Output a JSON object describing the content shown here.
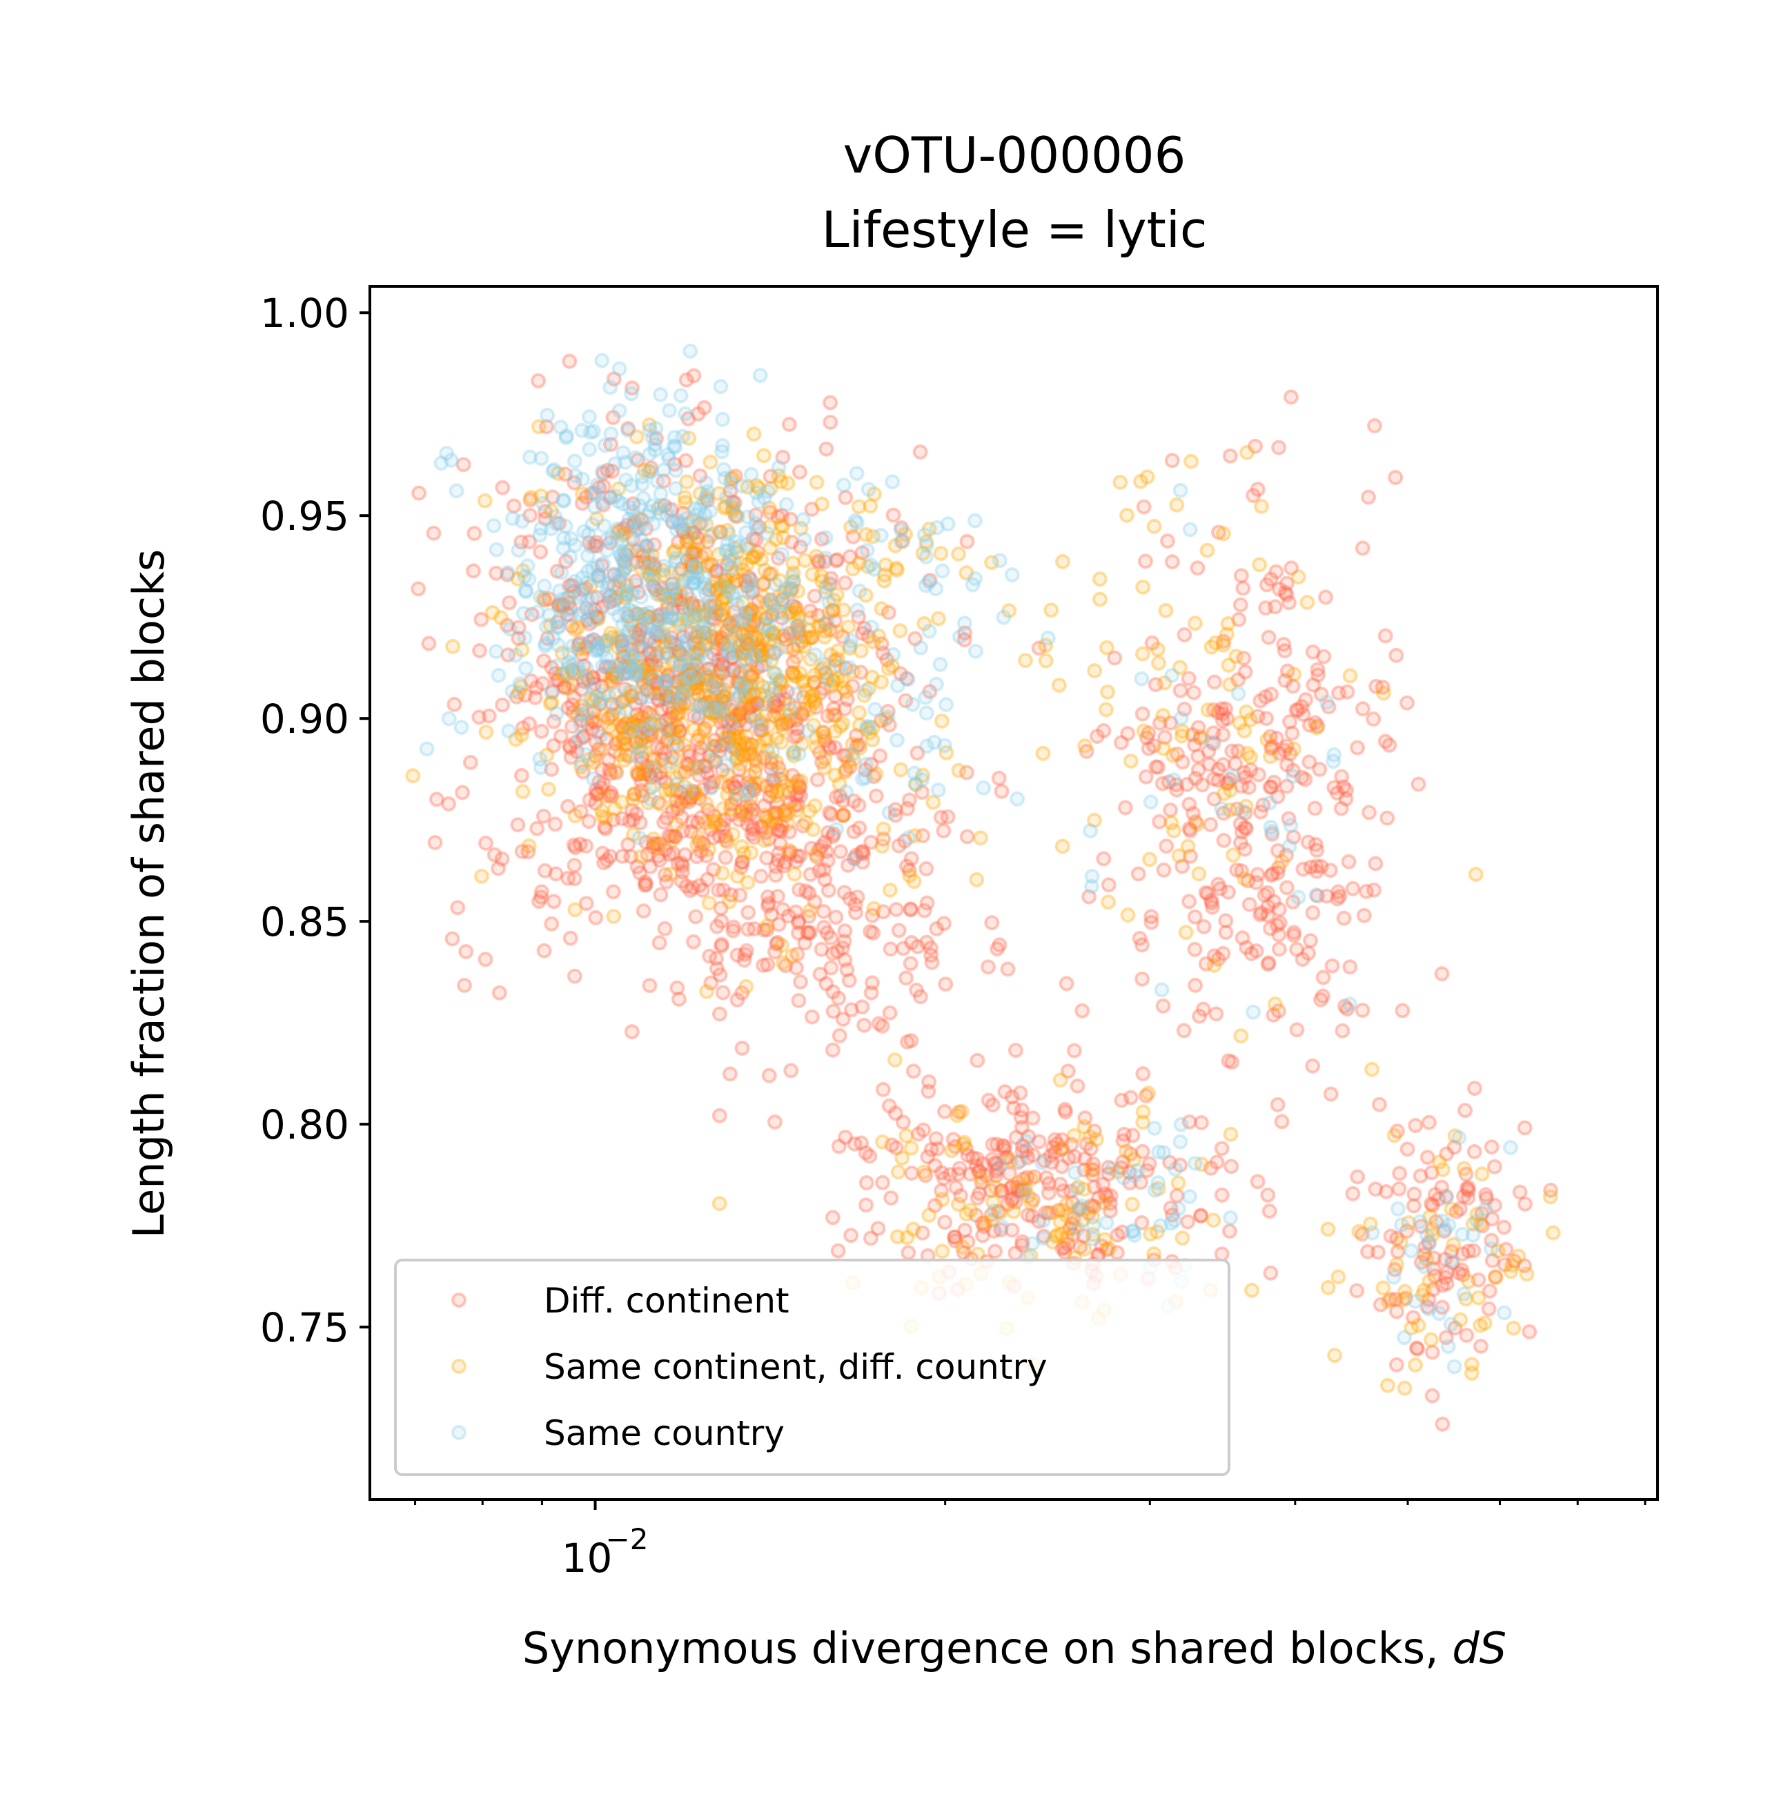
{
  "chart_data": {
    "type": "scatter",
    "title": "vOTU-000006",
    "subtitle": "Lifestyle = lytic",
    "xlabel": "Synonymous divergence on shared blocks, ",
    "xlabel_italic": "dS",
    "ylabel": "Length fraction of shared blocks",
    "xscale": "log",
    "xlim": [
      0.0064,
      0.082
    ],
    "ylim": [
      0.7075,
      1.0065
    ],
    "x_ticks": [
      {
        "value": 0.01,
        "base": "10",
        "exponent": "−2"
      }
    ],
    "y_ticks": [
      {
        "value": 0.75,
        "label": "0.75"
      },
      {
        "value": 0.8,
        "label": "0.80"
      },
      {
        "value": 0.85,
        "label": "0.85"
      },
      {
        "value": 0.9,
        "label": "0.90"
      },
      {
        "value": 0.95,
        "label": "0.95"
      },
      {
        "value": 1.0,
        "label": "1.00"
      }
    ],
    "grid": false,
    "legend_position": "lower-left",
    "point_alpha": 0.35,
    "series": [
      {
        "name": "Diff. continent",
        "color": "#ff6347",
        "clusters": [
          {
            "x_log_center": -1.93,
            "x_log_sd": 0.085,
            "y_center": 0.905,
            "y_sd": 0.03,
            "n": 900
          },
          {
            "x_log_center": -1.8,
            "x_log_sd": 0.07,
            "y_center": 0.858,
            "y_sd": 0.022,
            "n": 220
          },
          {
            "x_log_center": -1.43,
            "x_log_sd": 0.06,
            "y_center": 0.88,
            "y_sd": 0.035,
            "n": 320
          },
          {
            "x_log_center": -1.62,
            "x_log_sd": 0.085,
            "y_center": 0.785,
            "y_sd": 0.012,
            "n": 260
          },
          {
            "x_log_center": -1.27,
            "x_log_sd": 0.04,
            "y_center": 0.772,
            "y_sd": 0.016,
            "n": 110
          }
        ]
      },
      {
        "name": "Same continent, diff. country",
        "color": "#ffa500",
        "clusters": [
          {
            "x_log_center": -1.88,
            "x_log_sd": 0.08,
            "y_center": 0.91,
            "y_sd": 0.025,
            "n": 700
          },
          {
            "x_log_center": -1.48,
            "x_log_sd": 0.07,
            "y_center": 0.9,
            "y_sd": 0.03,
            "n": 90
          },
          {
            "x_log_center": -1.62,
            "x_log_sd": 0.08,
            "y_center": 0.78,
            "y_sd": 0.014,
            "n": 100
          },
          {
            "x_log_center": -1.27,
            "x_log_sd": 0.04,
            "y_center": 0.765,
            "y_sd": 0.015,
            "n": 55
          }
        ]
      },
      {
        "name": "Same country",
        "color": "#87ceeb",
        "clusters": [
          {
            "x_log_center": -1.95,
            "x_log_sd": 0.065,
            "y_center": 0.93,
            "y_sd": 0.022,
            "n": 520
          },
          {
            "x_log_center": -1.75,
            "x_log_sd": 0.06,
            "y_center": 0.915,
            "y_sd": 0.025,
            "n": 90
          },
          {
            "x_log_center": -1.48,
            "x_log_sd": 0.06,
            "y_center": 0.88,
            "y_sd": 0.03,
            "n": 30
          },
          {
            "x_log_center": -1.55,
            "x_log_sd": 0.06,
            "y_center": 0.78,
            "y_sd": 0.01,
            "n": 45
          },
          {
            "x_log_center": -1.27,
            "x_log_sd": 0.035,
            "y_center": 0.768,
            "y_sd": 0.014,
            "n": 30
          }
        ]
      }
    ]
  }
}
